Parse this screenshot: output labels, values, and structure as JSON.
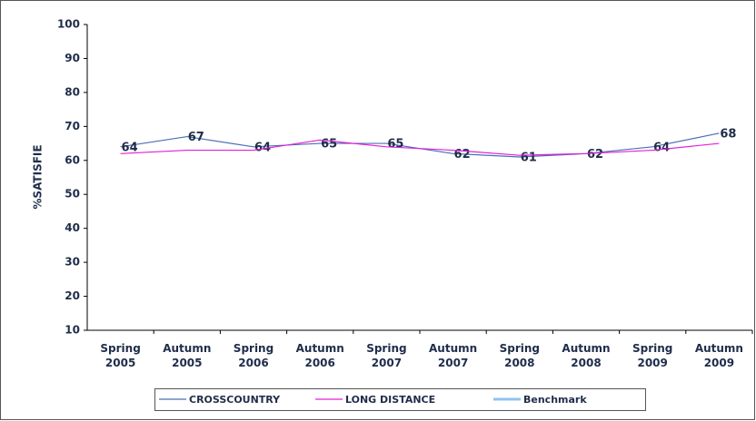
{
  "chart_data": {
    "type": "line",
    "y_label": "%SATISFIE",
    "categories": [
      "Spring 2005",
      "Autumn 2005",
      "Spring 2006",
      "Autumn 2006",
      "Spring 2007",
      "Autumn 2007",
      "Spring 2008",
      "Autumn 2008",
      "Spring 2009",
      "Autumn 2009"
    ],
    "series": [
      {
        "name": "CROSSCOUNTRY",
        "color": "#4a6fb5",
        "values": [
          64,
          67,
          64,
          65,
          65,
          62,
          61,
          62,
          64,
          68
        ],
        "labels": true
      },
      {
        "name": "LONG DISTANCE",
        "color": "#e020d8",
        "values": [
          62,
          63,
          63,
          66,
          64,
          63,
          61.5,
          62,
          63,
          65
        ],
        "labels": false
      },
      {
        "name": "Benchmark",
        "color": "#8fc3f0",
        "values": [
          null,
          null,
          null,
          null,
          null,
          null,
          null,
          null,
          null,
          null
        ],
        "labels": false
      }
    ],
    "ylim": [
      10,
      100
    ],
    "yticks": [
      10,
      20,
      30,
      40,
      50,
      60,
      70,
      80,
      90,
      100
    ]
  }
}
